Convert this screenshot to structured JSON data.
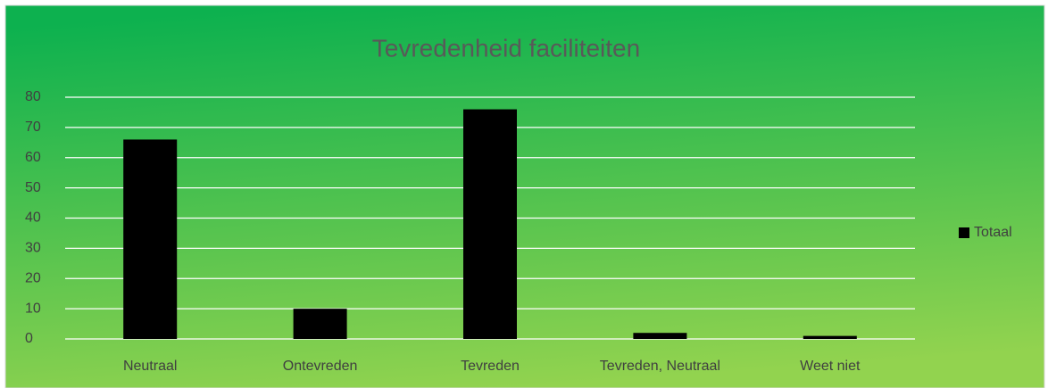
{
  "chart_data": {
    "type": "bar",
    "title": "Tevredenheid faciliteiten",
    "categories": [
      "Neutraal",
      "Ontevreden",
      "Tevreden",
      "Tevreden, Neutraal",
      "Weet niet"
    ],
    "series": [
      {
        "name": "Totaal",
        "color": "#000000",
        "values": [
          66,
          10,
          76,
          2,
          1
        ]
      }
    ],
    "ylim": [
      0,
      80
    ],
    "yticks": [
      0,
      10,
      20,
      30,
      40,
      50,
      60,
      70,
      80
    ],
    "grid": true,
    "legend": "right"
  }
}
